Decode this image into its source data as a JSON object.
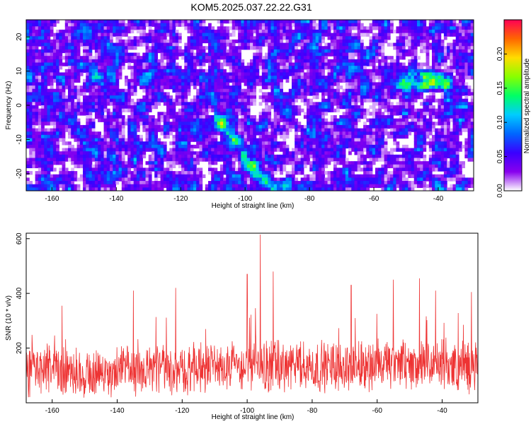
{
  "title": "KOM5.2025.037.22.22.G31",
  "chart_data": [
    {
      "type": "heatmap",
      "xlabel": "Height of straight line (km)",
      "ylabel": "Frequency (Hz)",
      "xlim": [
        -168,
        -29
      ],
      "ylim": [
        -25,
        25
      ],
      "xticks": [
        "-160",
        "-140",
        "-120",
        "-100",
        "-80",
        "-60",
        "-40"
      ],
      "yticks": [
        "-20",
        "-10",
        "0",
        "10",
        "20"
      ],
      "colorbar": {
        "label": "Normalized spectral amplitude",
        "range": [
          0,
          0.25
        ],
        "ticks": [
          "0.00",
          "0.05",
          "0.10",
          "0.15",
          "0.20"
        ],
        "colormap": [
          "#ffffff",
          "#8800ee",
          "#3a00ff",
          "#0066ff",
          "#00ccff",
          "#00ff66",
          "#88ff00",
          "#ffdd00",
          "#ff6600",
          "#ff0055"
        ]
      },
      "features": [
        {
          "x": -100,
          "y": -10,
          "value": 0.14,
          "note": "ridge from (-108,-5) to (-92,-24)"
        },
        {
          "x": -45,
          "y": 7,
          "value": 0.17,
          "note": "cluster near (-50..-36, 4..9)"
        }
      ]
    },
    {
      "type": "line",
      "xlabel": "Height of straight line (km)",
      "ylabel": "SNR (10 * v/v)",
      "xlim": [
        -168,
        -29
      ],
      "ylim": [
        0,
        620
      ],
      "xticks": [
        "-160",
        "-140",
        "-120",
        "-100",
        "-80",
        "-60",
        "-40"
      ],
      "yticks": [
        "200",
        "400",
        "600"
      ],
      "color": "#ee3333",
      "series_summary": {
        "typical_range": [
          50,
          200
        ],
        "mean_trend": [
          {
            "x": -168,
            "y": 115
          },
          {
            "x": -140,
            "y": 110
          },
          {
            "x": -120,
            "y": 125
          },
          {
            "x": -100,
            "y": 135
          },
          {
            "x": -80,
            "y": 130
          },
          {
            "x": -60,
            "y": 140
          },
          {
            "x": -40,
            "y": 135
          },
          {
            "x": -29,
            "y": 130
          }
        ],
        "peaks": [
          {
            "x": -96,
            "y": 615
          },
          {
            "x": -100,
            "y": 470
          },
          {
            "x": -92,
            "y": 480
          },
          {
            "x": -68,
            "y": 430
          },
          {
            "x": -55,
            "y": 450
          },
          {
            "x": -47,
            "y": 455
          },
          {
            "x": -42,
            "y": 410
          },
          {
            "x": -31,
            "y": 405
          },
          {
            "x": -122,
            "y": 420
          },
          {
            "x": -135,
            "y": 410
          },
          {
            "x": -157,
            "y": 355
          }
        ]
      }
    }
  ]
}
